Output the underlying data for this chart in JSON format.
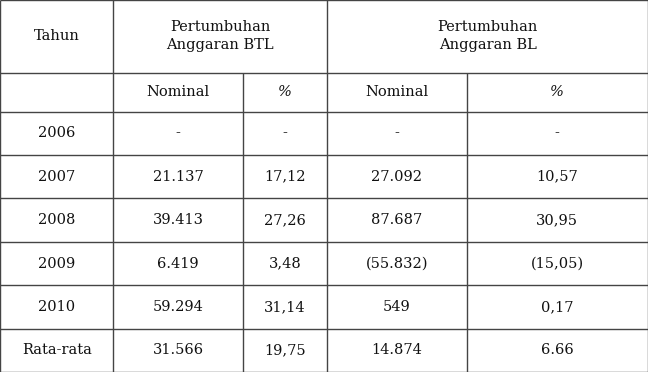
{
  "header_row1_col0": "Tahun",
  "header_row1_btl": "Pertumbuhan\nAnggaran BTL",
  "header_row1_bl": "Pertumbuhan\nAnggaran BL",
  "header_row2": [
    "",
    "Nominal",
    "%",
    "Nominal",
    "%"
  ],
  "rows": [
    [
      "2006",
      "-",
      "-",
      "-",
      "-"
    ],
    [
      "2007",
      "21.137",
      "17,12",
      "27.092",
      "10,57"
    ],
    [
      "2008",
      "39.413",
      "27,26",
      "87.687",
      "30,95"
    ],
    [
      "2009",
      "6.419",
      "3,48",
      "(55.832)",
      "(15,05)"
    ],
    [
      "2010",
      "59.294",
      "31,14",
      "549",
      "0,17"
    ],
    [
      "Rata-rata",
      "31.566",
      "19,75",
      "14.874",
      "6.66"
    ]
  ],
  "bg_color": "#ffffff",
  "line_color": "#444444",
  "text_color": "#111111",
  "font_size": 10.5,
  "fig_width": 6.48,
  "fig_height": 3.72
}
